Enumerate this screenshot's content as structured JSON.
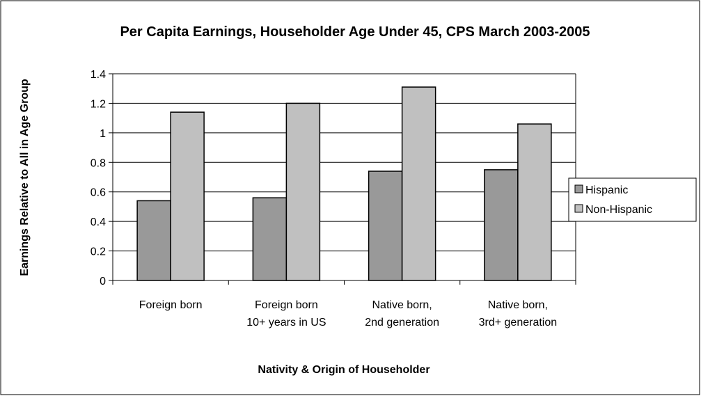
{
  "chart_data": {
    "type": "bar",
    "title": "Per Capita Earnings, Householder Age Under 45, CPS March 2003-2005",
    "x_label": "Nativity & Origin of Householder",
    "y_label": "Earnings Relative to All in Age Group",
    "categories": [
      "Foreign born",
      "Foreign born 10+ years in US",
      "Native born, 2nd generation",
      "Native born, 3rd+ generation"
    ],
    "series": [
      {
        "name": "Hispanic",
        "color": "#999999",
        "values": [
          0.54,
          0.56,
          0.74,
          0.75
        ]
      },
      {
        "name": "Non-Hispanic",
        "color": "#c0c0c0",
        "values": [
          1.14,
          1.2,
          1.31,
          1.06
        ]
      }
    ],
    "ylim": [
      0,
      1.4
    ],
    "yticks": [
      0,
      0.2,
      0.4,
      0.6,
      0.8,
      1,
      1.2,
      1.4
    ],
    "grid": true,
    "legend": "right"
  }
}
